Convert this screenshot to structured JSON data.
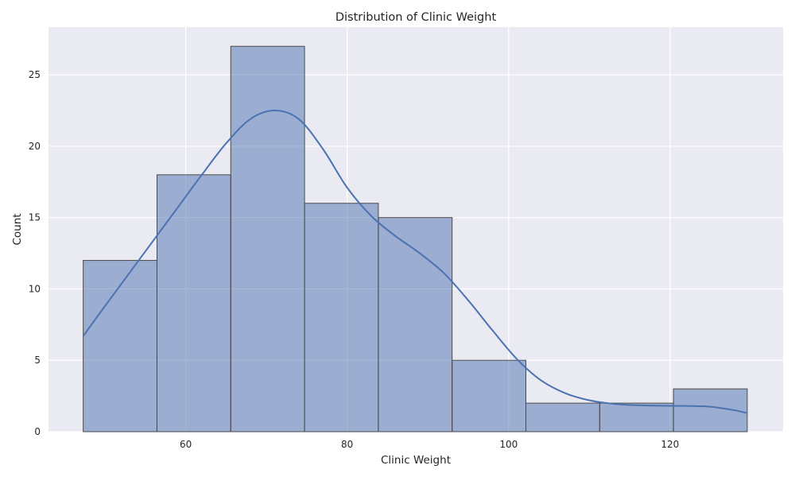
{
  "chart_data": {
    "type": "bar",
    "title": "Distribution of Clinic Weight",
    "xlabel": "Clinic Weight",
    "ylabel": "Count",
    "xlim": [
      43.0,
      134.0
    ],
    "ylim": [
      0,
      28.35
    ],
    "xticks": [
      60,
      80,
      100,
      120
    ],
    "yticks": [
      0,
      5,
      10,
      15,
      20,
      25
    ],
    "grid": true,
    "bin_edges": [
      47.3,
      56.44,
      65.58,
      74.72,
      83.86,
      93.0,
      102.14,
      111.28,
      120.42,
      129.56
    ],
    "counts": [
      12,
      18,
      27,
      16,
      15,
      5,
      2,
      2,
      3
    ],
    "kde": {
      "x": [
        47.3,
        50,
        53,
        56,
        59,
        62,
        65,
        68,
        71,
        74,
        77,
        80,
        83,
        86,
        89,
        92,
        95,
        98,
        101,
        104,
        107,
        110,
        113,
        116,
        119,
        122,
        125,
        128,
        129.56
      ],
      "y": [
        6.7,
        8.8,
        11.1,
        13.4,
        15.7,
        18.0,
        20.2,
        21.9,
        22.5,
        21.9,
        19.8,
        17.1,
        15.1,
        13.7,
        12.5,
        11.1,
        9.2,
        7.1,
        5.1,
        3.6,
        2.7,
        2.2,
        1.95,
        1.85,
        1.82,
        1.8,
        1.75,
        1.5,
        1.3
      ]
    },
    "colors": {
      "bar_fill": "#4c72b0",
      "bar_fill_opacity": 0.5,
      "bar_edge": "#4a4a4a",
      "kde_line": "#4c72b0",
      "plot_background": "#eaeaf2",
      "grid": "#ffffff"
    }
  }
}
